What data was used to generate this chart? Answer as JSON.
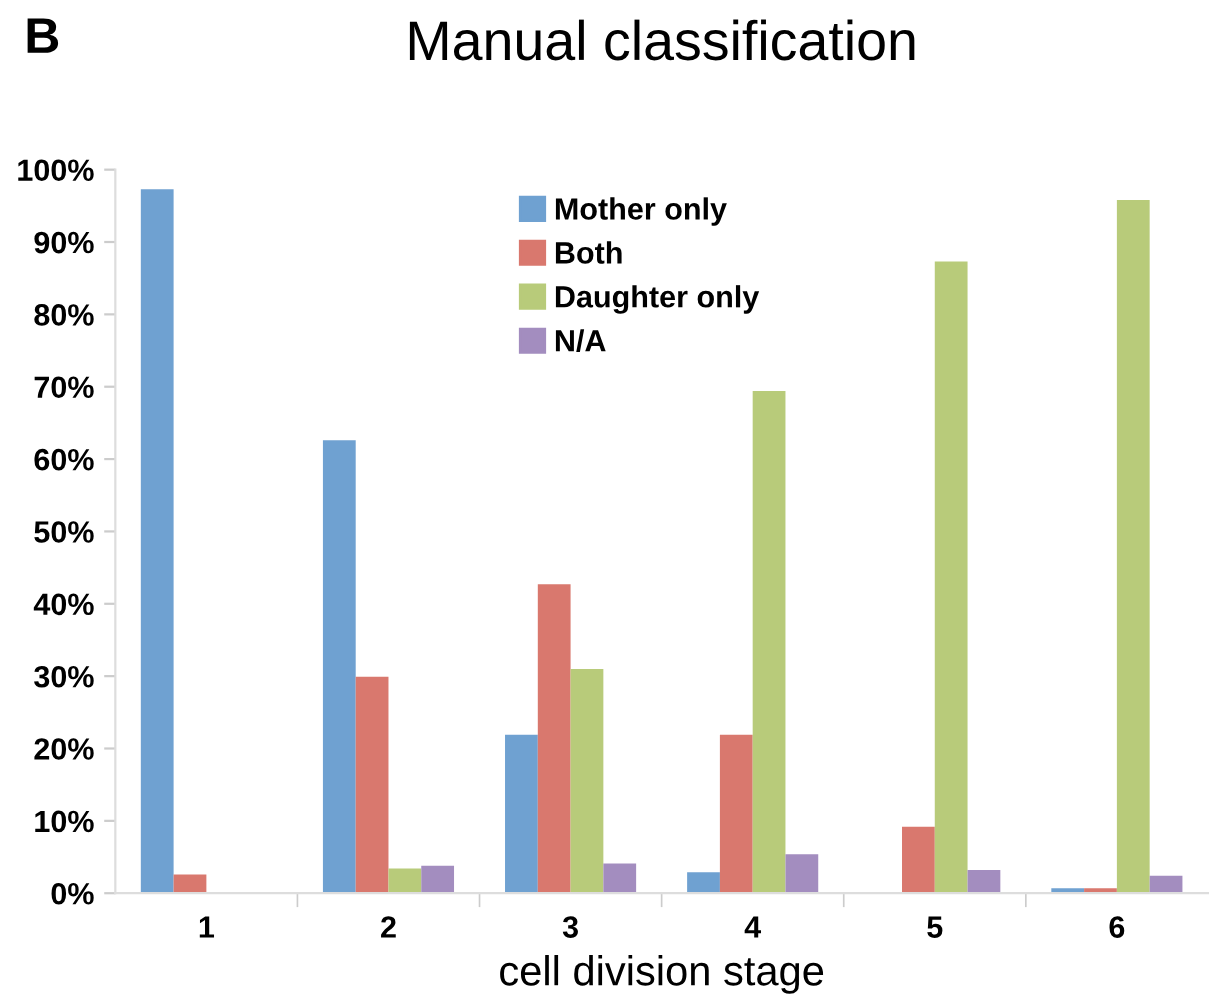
{
  "chart_data": {
    "type": "bar",
    "title": "Manual classification",
    "xlabel": "cell division stage",
    "annotations": [
      "B"
    ],
    "categories": [
      "1",
      "2",
      "3",
      "4",
      "5",
      "6"
    ],
    "series": [
      {
        "name": "Mother only",
        "color": "#6fa1d1",
        "values": [
          97.3,
          62.6,
          21.9,
          2.9,
          0,
          0.7
        ]
      },
      {
        "name": "Both",
        "color": "#d9786e",
        "values": [
          2.6,
          29.9,
          42.7,
          21.9,
          9.2,
          0.7
        ]
      },
      {
        "name": "Daughter only",
        "color": "#b8cb7a",
        "values": [
          0,
          3.4,
          31.0,
          69.4,
          87.3,
          95.8
        ]
      },
      {
        "name": "N/A",
        "color": "#a38dbf",
        "values": [
          0,
          3.8,
          4.1,
          5.4,
          3.2,
          2.4
        ]
      }
    ],
    "ylim": [
      0,
      100
    ],
    "yticks": [
      {
        "value": 0,
        "label": "0%"
      },
      {
        "value": 10,
        "label": "10%"
      },
      {
        "value": 20,
        "label": "20%"
      },
      {
        "value": 30,
        "label": "30%"
      },
      {
        "value": 40,
        "label": "40%"
      },
      {
        "value": 50,
        "label": "50%"
      },
      {
        "value": 60,
        "label": "60%"
      },
      {
        "value": 70,
        "label": "70%"
      },
      {
        "value": 80,
        "label": "80%"
      },
      {
        "value": 90,
        "label": "90%"
      },
      {
        "value": 100,
        "label": "100%"
      }
    ],
    "grid": false,
    "legend": "top"
  }
}
